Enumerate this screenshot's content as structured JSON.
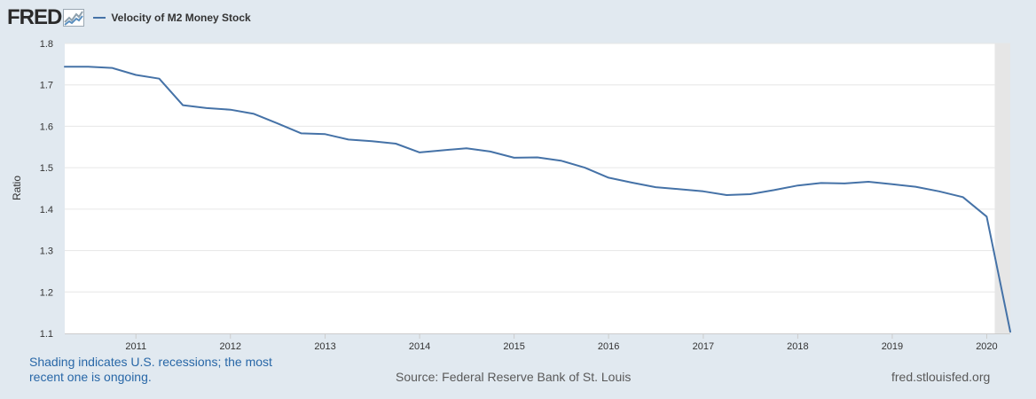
{
  "header": {
    "logo_text": "FRED",
    "logo_icon": "fred-chart-icon"
  },
  "footer": {
    "recession_note": "Shading indicates U.S. recessions; the most recent one is ongoing.",
    "source": "Source: Federal Reserve Bank of St. Louis",
    "site": "fred.stlouisfed.org"
  },
  "colors": {
    "page_background": "#e1e9f0",
    "plot_background": "#ffffff",
    "series_line": "#4572a7",
    "recession_shading": "#e6e6e6",
    "gridline": "#e6e6e6",
    "recession_note_text": "#2867a7"
  },
  "chart_data": {
    "type": "line",
    "title": "",
    "xlabel": "",
    "ylabel": "Ratio",
    "ylim": [
      1.1,
      1.8
    ],
    "yticks": [
      1.1,
      1.2,
      1.3,
      1.4,
      1.5,
      1.6,
      1.7,
      1.8
    ],
    "xlim": [
      "2010-04-01",
      "2020-04-01"
    ],
    "xticks": [
      "2011",
      "2012",
      "2013",
      "2014",
      "2015",
      "2016",
      "2017",
      "2018",
      "2019",
      "2020"
    ],
    "grid": "horizontal",
    "legend_position": "top-left",
    "recessions": [
      {
        "start": "2020-02-01",
        "end": "2020-04-01"
      }
    ],
    "series": [
      {
        "name": "Velocity of M2 Money Stock",
        "color": "#4572a7",
        "x": [
          "2010-04-01",
          "2010-07-01",
          "2010-10-01",
          "2011-01-01",
          "2011-04-01",
          "2011-07-01",
          "2011-10-01",
          "2012-01-01",
          "2012-04-01",
          "2012-07-01",
          "2012-10-01",
          "2013-01-01",
          "2013-04-01",
          "2013-07-01",
          "2013-10-01",
          "2014-01-01",
          "2014-04-01",
          "2014-07-01",
          "2014-10-01",
          "2015-01-01",
          "2015-04-01",
          "2015-07-01",
          "2015-10-01",
          "2016-01-01",
          "2016-04-01",
          "2016-07-01",
          "2016-10-01",
          "2017-01-01",
          "2017-04-01",
          "2017-07-01",
          "2017-10-01",
          "2018-01-01",
          "2018-04-01",
          "2018-07-01",
          "2018-10-01",
          "2019-01-01",
          "2019-04-01",
          "2019-07-01",
          "2019-10-01",
          "2020-01-01",
          "2020-04-01"
        ],
        "values": [
          1.744,
          1.744,
          1.741,
          1.724,
          1.715,
          1.651,
          1.644,
          1.64,
          1.63,
          1.607,
          1.583,
          1.581,
          1.568,
          1.564,
          1.558,
          1.537,
          1.542,
          1.547,
          1.539,
          1.524,
          1.525,
          1.517,
          1.5,
          1.476,
          1.464,
          1.453,
          1.448,
          1.443,
          1.434,
          1.436,
          1.446,
          1.457,
          1.463,
          1.462,
          1.466,
          1.46,
          1.454,
          1.443,
          1.429,
          1.382,
          1.104
        ]
      }
    ]
  }
}
